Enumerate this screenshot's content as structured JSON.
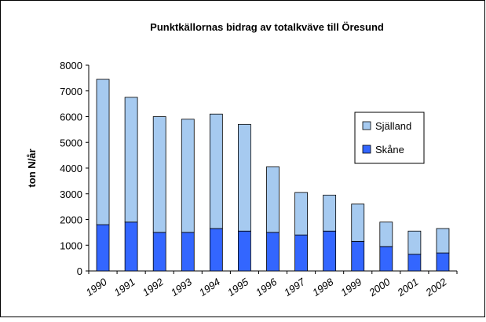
{
  "chart_data": {
    "type": "stacked-bar",
    "title": "Punktkällornas bidrag av totalkväve till Öresund",
    "y_label": "ton N/år",
    "categories": [
      "1990",
      "1991",
      "1992",
      "1993",
      "1994",
      "1995",
      "1996",
      "1997",
      "1998",
      "1999",
      "2000",
      "2001",
      "2002"
    ],
    "series": [
      {
        "name": "Skåne",
        "color": "#3366ff",
        "values": [
          1800,
          1900,
          1500,
          1500,
          1650,
          1550,
          1500,
          1400,
          1550,
          1150,
          950,
          650,
          700
        ]
      },
      {
        "name": "Själland",
        "color": "#a6caf0",
        "values": [
          5650,
          4850,
          4500,
          4400,
          4450,
          4150,
          2550,
          1650,
          1400,
          1450,
          950,
          900,
          950
        ]
      }
    ],
    "ylim": [
      0,
      8000
    ],
    "yticks": [
      0,
      1000,
      2000,
      3000,
      4000,
      5000,
      6000,
      7000,
      8000
    ],
    "legend": "right"
  }
}
